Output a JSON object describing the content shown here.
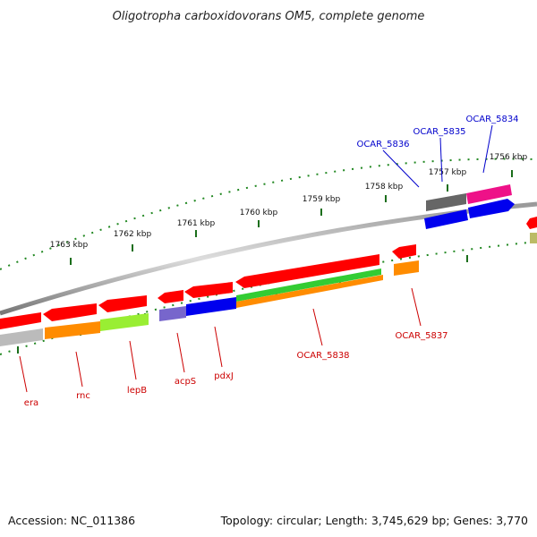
{
  "title": "Oligotropha carboxidovorans OM5, complete genome",
  "footer": {
    "accession": "Accession: NC_011386",
    "summary": "Topology: circular; Length: 3,745,629 bp; Genes: 3,770"
  },
  "ticks": [
    "1763 kbp",
    "1762 kbp",
    "1761 kbp",
    "1760 kbp",
    "1759 kbp",
    "1758 kbp",
    "1757 kbp",
    "1756 kbp"
  ],
  "gene_labels": {
    "era": "era",
    "rnc": "rnc",
    "lepB": "lepB",
    "acpS": "acpS",
    "pdxJ": "pdxJ",
    "ocar5838": "OCAR_5838",
    "ocar5837": "OCAR_5837",
    "ocar5836": "OCAR_5836",
    "ocar5835": "OCAR_5835",
    "ocar5834": "OCAR_5834"
  },
  "colors": {
    "gene_red": "#ff0000",
    "blue": "#0000ee",
    "orange": "#ff8c00",
    "green": "#33cc33",
    "lightgreen": "#99ee33",
    "grey": "#bbbbbb",
    "darkgrey": "#666666",
    "magenta": "#ee1188",
    "purple": "#7766cc",
    "tick_green": "#227722"
  }
}
